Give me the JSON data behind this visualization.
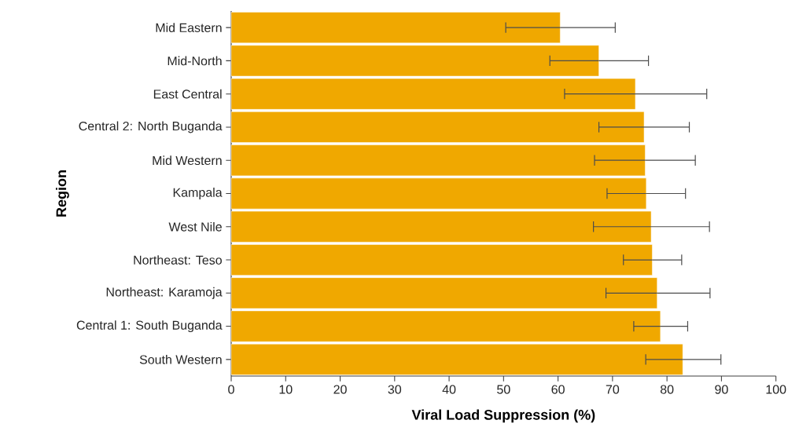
{
  "chart_data": {
    "type": "bar",
    "orientation": "horizontal",
    "xlabel": "Viral Load Suppression (%)",
    "ylabel": "Region",
    "categories": [
      "Mid Eastern",
      "Mid-North",
      "East Central",
      "Central 2: North Buganda",
      "Mid Western",
      "Kampala",
      "West Nile",
      "Northeast: Teso",
      "Northeast: Karamoja",
      "Central 1: South Buganda",
      "South Western"
    ],
    "values": [
      60.4,
      67.5,
      74.2,
      75.8,
      76.0,
      76.2,
      77.1,
      77.3,
      78.2,
      78.8,
      82.9
    ],
    "errors": [
      [
        50.4,
        70.5
      ],
      [
        58.5,
        76.6
      ],
      [
        61.2,
        87.3
      ],
      [
        67.5,
        84.1
      ],
      [
        66.7,
        85.2
      ],
      [
        69.0,
        83.4
      ],
      [
        66.5,
        87.8
      ],
      [
        72.0,
        82.7
      ],
      [
        68.8,
        87.9
      ],
      [
        73.9,
        83.8
      ],
      [
        76.1,
        89.9
      ]
    ],
    "color": "#f0a800",
    "xlim": [
      0,
      100
    ],
    "xticks": [
      0,
      10,
      20,
      30,
      40,
      50,
      60,
      70,
      80,
      90,
      100
    ],
    "grid": false
  }
}
